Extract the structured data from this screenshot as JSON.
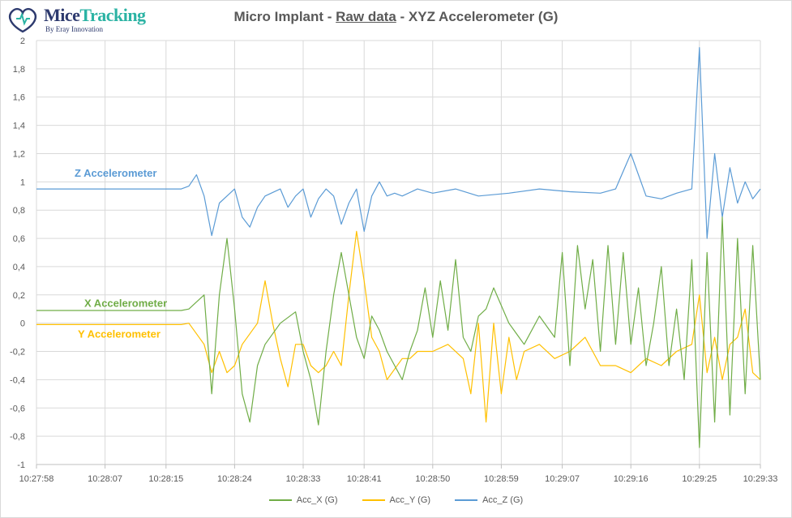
{
  "header": {
    "logo_mice": "Mice",
    "logo_tracking": "Tracking",
    "logo_sub": "By Eray Innovation",
    "title_pre": "Micro Implant - ",
    "title_raw": "Raw data",
    "title_post": " - XYZ Accelerometer (G)"
  },
  "colors": {
    "x": "#70ad47",
    "y": "#ffc000",
    "z": "#5b9bd5",
    "grid": "#d9d9d9"
  },
  "chart_data": {
    "type": "line",
    "title": "Micro Implant - Raw data - XYZ Accelerometer (G)",
    "xlabel": "",
    "ylabel": "",
    "ylim": [
      -1,
      2
    ],
    "yticks": [
      -1,
      -0.8,
      -0.6,
      -0.4,
      -0.2,
      0,
      0.2,
      0.4,
      0.6,
      0.8,
      1,
      1.2,
      1.4,
      1.6,
      1.8,
      2
    ],
    "ytick_labels": [
      "-1",
      "-0,8",
      "-0,6",
      "-0,4",
      "-0,2",
      "0",
      "0,2",
      "0,4",
      "0,6",
      "0,8",
      "1",
      "1,2",
      "1,4",
      "1,6",
      "1,8",
      "2"
    ],
    "xlim": [
      "10:27:58",
      "10:29:33"
    ],
    "xticks": [
      "10:27:58",
      "10:28:07",
      "10:28:15",
      "10:28:24",
      "10:28:33",
      "10:28:41",
      "10:28:50",
      "10:28:59",
      "10:29:07",
      "10:29:16",
      "10:29:25",
      "10:29:33"
    ],
    "grid": true,
    "legend_position": "bottom",
    "annotations": [
      {
        "text": "Z Accelerometer",
        "series": "Acc_Z (G)"
      },
      {
        "text": "X Accelerometer",
        "series": "Acc_X (G)"
      },
      {
        "text": "Y Accelerometer",
        "series": "Acc_Y (G)"
      }
    ],
    "series": [
      {
        "name": "Acc_X (G)",
        "x": [
          "10:27:58",
          "10:28:17",
          "10:28:18",
          "10:28:20",
          "10:28:21",
          "10:28:22",
          "10:28:23",
          "10:28:24",
          "10:28:25",
          "10:28:26",
          "10:28:27",
          "10:28:28",
          "10:28:30",
          "10:28:32",
          "10:28:33",
          "10:28:34",
          "10:28:35",
          "10:28:36",
          "10:28:37",
          "10:28:38",
          "10:28:39",
          "10:28:40",
          "10:28:41",
          "10:28:42",
          "10:28:43",
          "10:28:44",
          "10:28:46",
          "10:28:47",
          "10:28:48",
          "10:28:49",
          "10:28:50",
          "10:28:51",
          "10:28:52",
          "10:28:53",
          "10:28:54",
          "10:28:55",
          "10:28:56",
          "10:28:57",
          "10:28:58",
          "10:29:00",
          "10:29:02",
          "10:29:04",
          "10:29:06",
          "10:29:07",
          "10:29:08",
          "10:29:09",
          "10:29:10",
          "10:29:11",
          "10:29:12",
          "10:29:13",
          "10:29:14",
          "10:29:15",
          "10:29:16",
          "10:29:17",
          "10:29:18",
          "10:29:19",
          "10:29:20",
          "10:29:21",
          "10:29:22",
          "10:29:23",
          "10:29:24",
          "10:29:25",
          "10:29:26",
          "10:29:27",
          "10:29:28",
          "10:29:29",
          "10:29:30",
          "10:29:31",
          "10:29:32",
          "10:29:33"
        ],
        "values": [
          0.09,
          0.09,
          0.1,
          0.2,
          -0.5,
          0.2,
          0.6,
          0.1,
          -0.5,
          -0.7,
          -0.3,
          -0.15,
          0.0,
          0.08,
          -0.2,
          -0.4,
          -0.72,
          -0.2,
          0.2,
          0.5,
          0.2,
          -0.1,
          -0.25,
          0.05,
          -0.05,
          -0.2,
          -0.4,
          -0.2,
          -0.05,
          0.25,
          -0.1,
          0.3,
          -0.05,
          0.45,
          -0.1,
          -0.2,
          0.05,
          0.1,
          0.25,
          0.0,
          -0.15,
          0.05,
          -0.1,
          0.5,
          -0.3,
          0.55,
          0.1,
          0.45,
          -0.2,
          0.55,
          -0.15,
          0.5,
          -0.15,
          0.25,
          -0.3,
          0.0,
          0.4,
          -0.3,
          0.1,
          -0.4,
          0.45,
          -0.88,
          0.5,
          -0.7,
          0.75,
          -0.65,
          0.6,
          -0.5,
          0.55,
          -0.4
        ]
      },
      {
        "name": "Acc_Y (G)",
        "x": [
          "10:27:58",
          "10:28:17",
          "10:28:18",
          "10:28:20",
          "10:28:21",
          "10:28:22",
          "10:28:23",
          "10:28:24",
          "10:28:25",
          "10:28:27",
          "10:28:28",
          "10:28:29",
          "10:28:30",
          "10:28:31",
          "10:28:32",
          "10:28:33",
          "10:28:34",
          "10:28:35",
          "10:28:36",
          "10:28:37",
          "10:28:38",
          "10:28:39",
          "10:28:40",
          "10:28:41",
          "10:28:42",
          "10:28:43",
          "10:28:44",
          "10:28:46",
          "10:28:47",
          "10:28:48",
          "10:28:50",
          "10:28:52",
          "10:28:54",
          "10:28:55",
          "10:28:56",
          "10:28:57",
          "10:28:58",
          "10:28:59",
          "10:29:00",
          "10:29:01",
          "10:29:02",
          "10:29:04",
          "10:29:06",
          "10:29:08",
          "10:29:10",
          "10:29:12",
          "10:29:14",
          "10:29:16",
          "10:29:18",
          "10:29:20",
          "10:29:22",
          "10:29:24",
          "10:29:25",
          "10:29:26",
          "10:29:27",
          "10:29:28",
          "10:29:29",
          "10:29:30",
          "10:29:31",
          "10:29:32",
          "10:29:33"
        ],
        "values": [
          -0.01,
          -0.01,
          0.0,
          -0.15,
          -0.35,
          -0.2,
          -0.35,
          -0.3,
          -0.15,
          0.0,
          0.3,
          0.0,
          -0.25,
          -0.45,
          -0.15,
          -0.15,
          -0.3,
          -0.35,
          -0.3,
          -0.2,
          -0.3,
          0.2,
          0.65,
          0.3,
          -0.1,
          -0.2,
          -0.4,
          -0.25,
          -0.25,
          -0.2,
          -0.2,
          -0.15,
          -0.25,
          -0.5,
          0.0,
          -0.7,
          0.0,
          -0.5,
          -0.1,
          -0.4,
          -0.2,
          -0.15,
          -0.25,
          -0.2,
          -0.1,
          -0.3,
          -0.3,
          -0.35,
          -0.25,
          -0.3,
          -0.2,
          -0.15,
          0.2,
          -0.35,
          -0.1,
          -0.4,
          -0.15,
          -0.1,
          0.1,
          -0.35,
          -0.4
        ]
      },
      {
        "name": "Acc_Z (G)",
        "x": [
          "10:27:58",
          "10:28:17",
          "10:28:18",
          "10:28:19",
          "10:28:20",
          "10:28:21",
          "10:28:22",
          "10:28:23",
          "10:28:24",
          "10:28:25",
          "10:28:26",
          "10:28:27",
          "10:28:28",
          "10:28:30",
          "10:28:31",
          "10:28:32",
          "10:28:33",
          "10:28:34",
          "10:28:35",
          "10:28:36",
          "10:28:37",
          "10:28:38",
          "10:28:39",
          "10:28:40",
          "10:28:41",
          "10:28:42",
          "10:28:43",
          "10:28:44",
          "10:28:45",
          "10:28:46",
          "10:28:48",
          "10:28:50",
          "10:28:53",
          "10:28:56",
          "10:29:00",
          "10:29:04",
          "10:29:08",
          "10:29:12",
          "10:29:14",
          "10:29:16",
          "10:29:18",
          "10:29:20",
          "10:29:22",
          "10:29:24",
          "10:29:25",
          "10:29:26",
          "10:29:27",
          "10:29:28",
          "10:29:29",
          "10:29:30",
          "10:29:31",
          "10:29:32",
          "10:29:33"
        ],
        "values": [
          0.95,
          0.95,
          0.97,
          1.05,
          0.9,
          0.62,
          0.85,
          0.9,
          0.95,
          0.75,
          0.68,
          0.82,
          0.9,
          0.95,
          0.82,
          0.9,
          0.95,
          0.75,
          0.88,
          0.95,
          0.9,
          0.7,
          0.85,
          0.95,
          0.65,
          0.9,
          1.0,
          0.9,
          0.92,
          0.9,
          0.95,
          0.92,
          0.95,
          0.9,
          0.92,
          0.95,
          0.93,
          0.92,
          0.95,
          1.2,
          0.9,
          0.88,
          0.92,
          0.95,
          1.95,
          0.6,
          1.2,
          0.75,
          1.1,
          0.85,
          1.0,
          0.88,
          0.95
        ]
      }
    ]
  },
  "legend": {
    "x_label": "Acc_X (G)",
    "y_label": "Acc_Y (G)",
    "z_label": "Acc_Z (G)"
  }
}
